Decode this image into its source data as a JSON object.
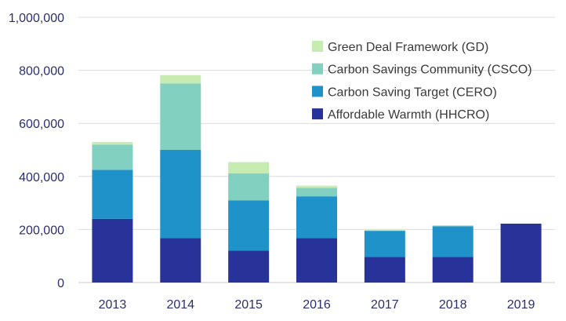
{
  "chart_data": {
    "type": "bar",
    "stacked": true,
    "categories": [
      "2013",
      "2014",
      "2015",
      "2016",
      "2017",
      "2018",
      "2019"
    ],
    "series": [
      {
        "name": "Affordable Warmth (HHCRO)",
        "color": "#28339a",
        "values": [
          240000,
          168000,
          120000,
          168000,
          97000,
          97000,
          222000
        ]
      },
      {
        "name": "Carbon Saving Target (CERO)",
        "color": "#1f92c9",
        "values": [
          185000,
          332000,
          190000,
          157000,
          98000,
          115000,
          0
        ]
      },
      {
        "name": "Carbon Savings Community  (CSCO)",
        "color": "#82d0bf",
        "values": [
          95000,
          250000,
          102000,
          32000,
          0,
          3000,
          0
        ]
      },
      {
        "name": "Green Deal Framework (GD)",
        "color": "#c7ecb2",
        "values": [
          10000,
          32000,
          42000,
          8000,
          5000,
          0,
          0
        ]
      }
    ],
    "yticks": [
      "0",
      "200,000",
      "400,000",
      "600,000",
      "800,000",
      "1,000,000"
    ],
    "ylim": [
      0,
      1000000
    ],
    "grid": true,
    "legend_position": "top-right",
    "title": "",
    "xlabel": "",
    "ylabel": ""
  }
}
